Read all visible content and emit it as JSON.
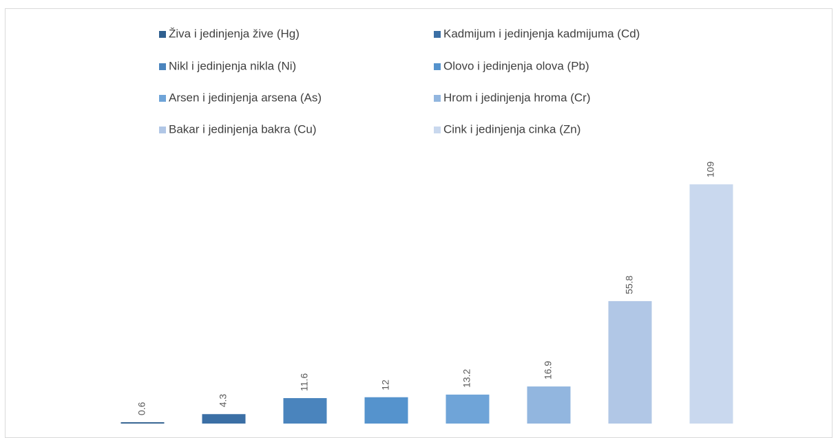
{
  "chart_data": {
    "type": "bar",
    "categories": [
      null
    ],
    "series": [
      {
        "name": "Živa i jedinjenja žive (Hg)",
        "color": "#2f5f8f",
        "values": [
          0.6
        ]
      },
      {
        "name": "Kadmijum i jedinjenja kadmijuma (Cd)",
        "color": "#3b6fa5",
        "values": [
          4.3
        ]
      },
      {
        "name": "Nikl i jedinjenja nikla (Ni)",
        "color": "#4a84bd",
        "values": [
          11.6
        ]
      },
      {
        "name": "Olovo i jedinjenja olova (Pb)",
        "color": "#5593cd",
        "values": [
          12
        ]
      },
      {
        "name": "Arsen i jedinjenja arsena (As)",
        "color": "#6fa4d8",
        "values": [
          13.2
        ]
      },
      {
        "name": "Hrom i jedinjenja hroma (Cr)",
        "color": "#92b6df",
        "values": [
          16.9
        ]
      },
      {
        "name": "Bakar i jedinjenja bakra (Cu)",
        "color": "#b1c7e6",
        "values": [
          55.8
        ]
      },
      {
        "name": "Cink i jedinjenja cinka (Zn)",
        "color": "#c9d8ee",
        "values": [
          109
        ]
      }
    ],
    "ylim": [
      0,
      120
    ],
    "legend": "top"
  }
}
